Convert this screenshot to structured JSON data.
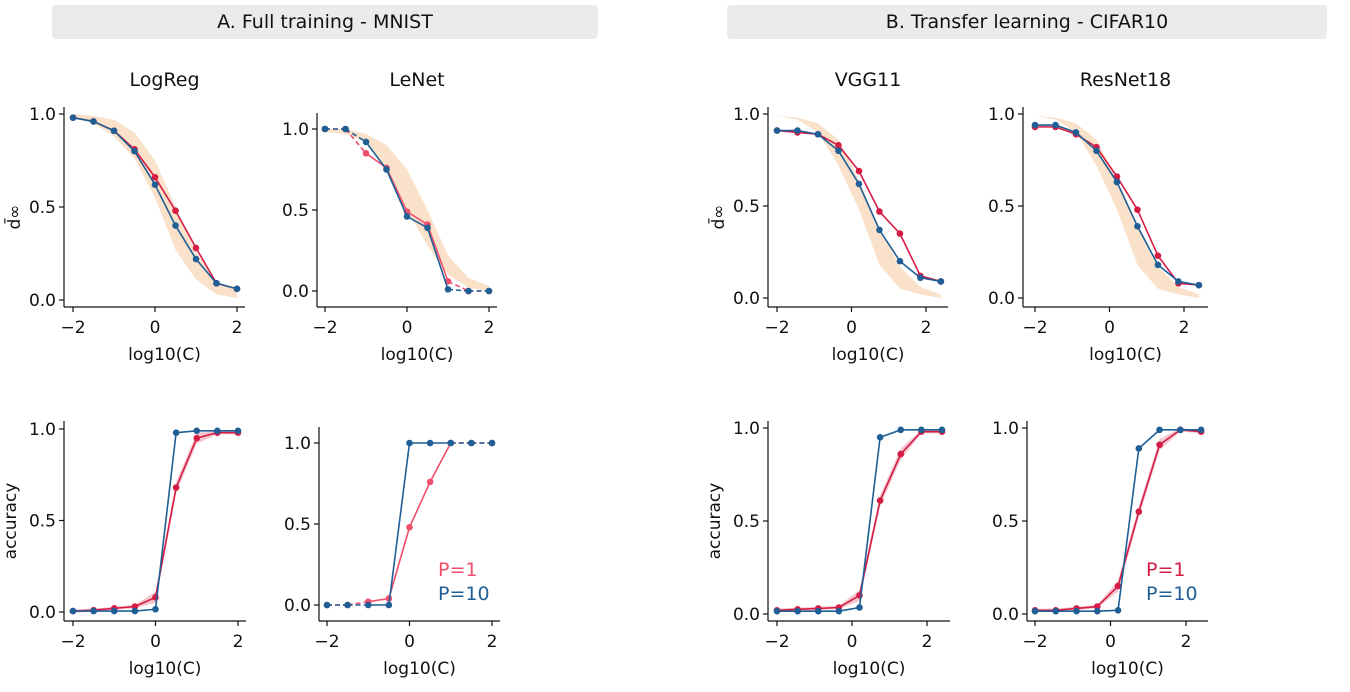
{
  "headers": {
    "a": "A. Full training - MNIST",
    "b": "B. Transfer learning - CIFAR10"
  },
  "colors": {
    "p1": "#d41c44",
    "p1_light": "#ef4f6c",
    "p10": "#1f5f95",
    "band": "#f8d9bd",
    "header_bg": "#ebebeb"
  },
  "chart_data": [
    {
      "type": "line",
      "title": "LogReg",
      "xlabel": "log10(C)",
      "ylabel": "d̄∞",
      "xticks": [
        "−2",
        "0",
        "2"
      ],
      "yticks": [
        "0.0",
        "0.5",
        "1.0"
      ],
      "ylim": [
        -0.04,
        1.03
      ],
      "x": [
        -2,
        -1.5,
        -1,
        -0.5,
        0,
        0.5,
        1,
        1.5,
        2
      ],
      "band": {
        "upper": [
          1.0,
          0.99,
          0.97,
          0.9,
          0.75,
          0.5,
          0.26,
          0.1,
          0.05
        ],
        "lower": [
          0.98,
          0.95,
          0.88,
          0.76,
          0.55,
          0.27,
          0.11,
          0.03,
          0.01
        ]
      },
      "series": [
        {
          "name": "P=1",
          "values": [
            0.98,
            0.96,
            0.91,
            0.81,
            0.66,
            0.48,
            0.28,
            0.09,
            0.06
          ]
        },
        {
          "name": "P=10",
          "values": [
            0.98,
            0.96,
            0.91,
            0.8,
            0.62,
            0.4,
            0.22,
            0.09,
            0.06
          ]
        }
      ]
    },
    {
      "type": "line",
      "title": "LeNet",
      "xlabel": "log10(C)",
      "ylabel": "",
      "xticks": [
        "−2",
        "0",
        "2"
      ],
      "yticks": [
        "0.0",
        "0.5",
        "1.0"
      ],
      "ylim": [
        -0.1,
        1.1
      ],
      "x": [
        -2,
        -1.5,
        -1,
        -0.5,
        0,
        0.5,
        1,
        1.5,
        2
      ],
      "dashed_segments": [
        [
          0,
          2
        ],
        [
          6,
          8
        ]
      ],
      "band": {
        "upper": [
          1.0,
          1.0,
          0.97,
          0.9,
          0.75,
          0.5,
          0.22,
          0.08,
          0.03
        ],
        "lower": [
          0.98,
          0.97,
          0.92,
          0.75,
          0.5,
          0.28,
          0.1,
          0.02,
          0.0
        ]
      },
      "series": [
        {
          "name": "P=1",
          "values": [
            1.0,
            1.0,
            0.85,
            0.76,
            0.49,
            0.41,
            0.06,
            0.0,
            0.0
          ]
        },
        {
          "name": "P=10",
          "values": [
            1.0,
            1.0,
            0.92,
            0.75,
            0.46,
            0.39,
            0.01,
            0.0,
            0.0
          ]
        }
      ]
    },
    {
      "type": "line",
      "title": "VGG11",
      "xlabel": "log10(C)",
      "ylabel": "d̄∞",
      "xticks": [
        "−2",
        "0",
        "2"
      ],
      "yticks": [
        "0.0",
        "0.5",
        "1.0"
      ],
      "ylim": [
        -0.04,
        1.03
      ],
      "x": [
        -2,
        -1.45,
        -0.9,
        -0.35,
        0.2,
        0.75,
        1.3,
        1.85,
        2.4
      ],
      "band": {
        "upper": [
          0.99,
          0.98,
          0.95,
          0.86,
          0.64,
          0.38,
          0.17,
          0.06,
          0.02
        ],
        "lower": [
          0.99,
          0.97,
          0.9,
          0.72,
          0.48,
          0.18,
          0.05,
          0.02,
          0.0
        ]
      },
      "series": [
        {
          "name": "P=1",
          "values": [
            0.91,
            0.9,
            0.89,
            0.83,
            0.69,
            0.47,
            0.35,
            0.12,
            0.09
          ]
        },
        {
          "name": "P=10",
          "values": [
            0.91,
            0.91,
            0.89,
            0.8,
            0.62,
            0.37,
            0.2,
            0.11,
            0.09
          ]
        }
      ]
    },
    {
      "type": "line",
      "title": "ResNet18",
      "xlabel": "log10(C)",
      "ylabel": "",
      "xticks": [
        "−2",
        "0",
        "2"
      ],
      "yticks": [
        "0.0",
        "0.5",
        "1.0"
      ],
      "ylim": [
        -0.04,
        1.03
      ],
      "x": [
        -2,
        -1.45,
        -0.9,
        -0.35,
        0.2,
        0.75,
        1.3,
        1.85,
        2.4
      ],
      "band": {
        "upper": [
          0.99,
          0.98,
          0.95,
          0.86,
          0.64,
          0.38,
          0.17,
          0.06,
          0.02
        ],
        "lower": [
          0.99,
          0.97,
          0.9,
          0.72,
          0.48,
          0.18,
          0.05,
          0.02,
          0.0
        ]
      },
      "series": [
        {
          "name": "P=1",
          "values": [
            0.93,
            0.93,
            0.89,
            0.82,
            0.66,
            0.48,
            0.23,
            0.08,
            0.07
          ]
        },
        {
          "name": "P=10",
          "values": [
            0.94,
            0.94,
            0.9,
            0.8,
            0.63,
            0.39,
            0.18,
            0.09,
            0.07
          ]
        }
      ]
    },
    {
      "type": "line",
      "title": "",
      "xlabel": "log10(C)",
      "ylabel": "accuracy",
      "xticks": [
        "−2",
        "0",
        "2"
      ],
      "yticks": [
        "0.0",
        "0.5",
        "1.0"
      ],
      "ylim": [
        -0.05,
        1.04
      ],
      "x": [
        -2,
        -1.5,
        -1,
        -0.5,
        0,
        0.5,
        1,
        1.5,
        2
      ],
      "series": [
        {
          "name": "P=1",
          "values": [
            0.005,
            0.01,
            0.02,
            0.03,
            0.08,
            0.68,
            0.95,
            0.98,
            0.98
          ],
          "spread": 0.03
        },
        {
          "name": "P=10",
          "values": [
            0.005,
            0.005,
            0.005,
            0.005,
            0.015,
            0.98,
            0.99,
            0.99,
            0.99
          ]
        }
      ]
    },
    {
      "type": "line",
      "title": "",
      "xlabel": "log10(C)",
      "ylabel": "",
      "xticks": [
        "−2",
        "0",
        "2"
      ],
      "yticks": [
        "0.0",
        "0.5",
        "1.0"
      ],
      "ylim": [
        -0.1,
        1.1
      ],
      "x": [
        -2,
        -1.5,
        -1,
        -0.5,
        0,
        0.5,
        1,
        1.5,
        2
      ],
      "dashed_segments": [
        [
          0,
          2
        ],
        [
          6,
          8
        ]
      ],
      "legend": [
        "P=1",
        "P=10"
      ],
      "legend_position": "lower-right",
      "series": [
        {
          "name": "P=1",
          "values": [
            0,
            0,
            0.02,
            0.04,
            0.48,
            0.76,
            1.0,
            1.0,
            1.0
          ]
        },
        {
          "name": "P=10",
          "values": [
            0,
            0,
            0,
            0,
            1.0,
            1.0,
            1.0,
            1.0,
            1.0
          ]
        }
      ]
    },
    {
      "type": "line",
      "title": "",
      "xlabel": "log10(C)",
      "ylabel": "accuracy",
      "xticks": [
        "−2",
        "0",
        "2"
      ],
      "yticks": [
        "0.0",
        "0.5",
        "1.0"
      ],
      "ylim": [
        -0.04,
        1.03
      ],
      "x": [
        -2,
        -1.45,
        -0.9,
        -0.35,
        0.2,
        0.75,
        1.3,
        1.85,
        2.4
      ],
      "series": [
        {
          "name": "P=1",
          "values": [
            0.02,
            0.025,
            0.03,
            0.035,
            0.1,
            0.61,
            0.86,
            0.98,
            0.98
          ],
          "spread": 0.03
        },
        {
          "name": "P=10",
          "values": [
            0.015,
            0.015,
            0.015,
            0.015,
            0.035,
            0.95,
            0.99,
            0.99,
            0.99
          ]
        }
      ]
    },
    {
      "type": "line",
      "title": "",
      "xlabel": "log10(C)",
      "ylabel": "",
      "xticks": [
        "−2",
        "0",
        "2"
      ],
      "yticks": [
        "0.0",
        "0.5",
        "1.0"
      ],
      "ylim": [
        -0.04,
        1.03
      ],
      "x": [
        -2,
        -1.45,
        -0.9,
        -0.35,
        0.2,
        0.75,
        1.3,
        1.85,
        2.4
      ],
      "legend": [
        "P=1",
        "P=10"
      ],
      "legend_position": "lower-right",
      "series": [
        {
          "name": "P=1",
          "values": [
            0.02,
            0.02,
            0.03,
            0.04,
            0.15,
            0.55,
            0.91,
            0.99,
            0.98
          ],
          "spread": 0.03
        },
        {
          "name": "P=10",
          "values": [
            0.015,
            0.015,
            0.015,
            0.015,
            0.02,
            0.89,
            0.99,
            0.99,
            0.99
          ]
        }
      ]
    }
  ]
}
